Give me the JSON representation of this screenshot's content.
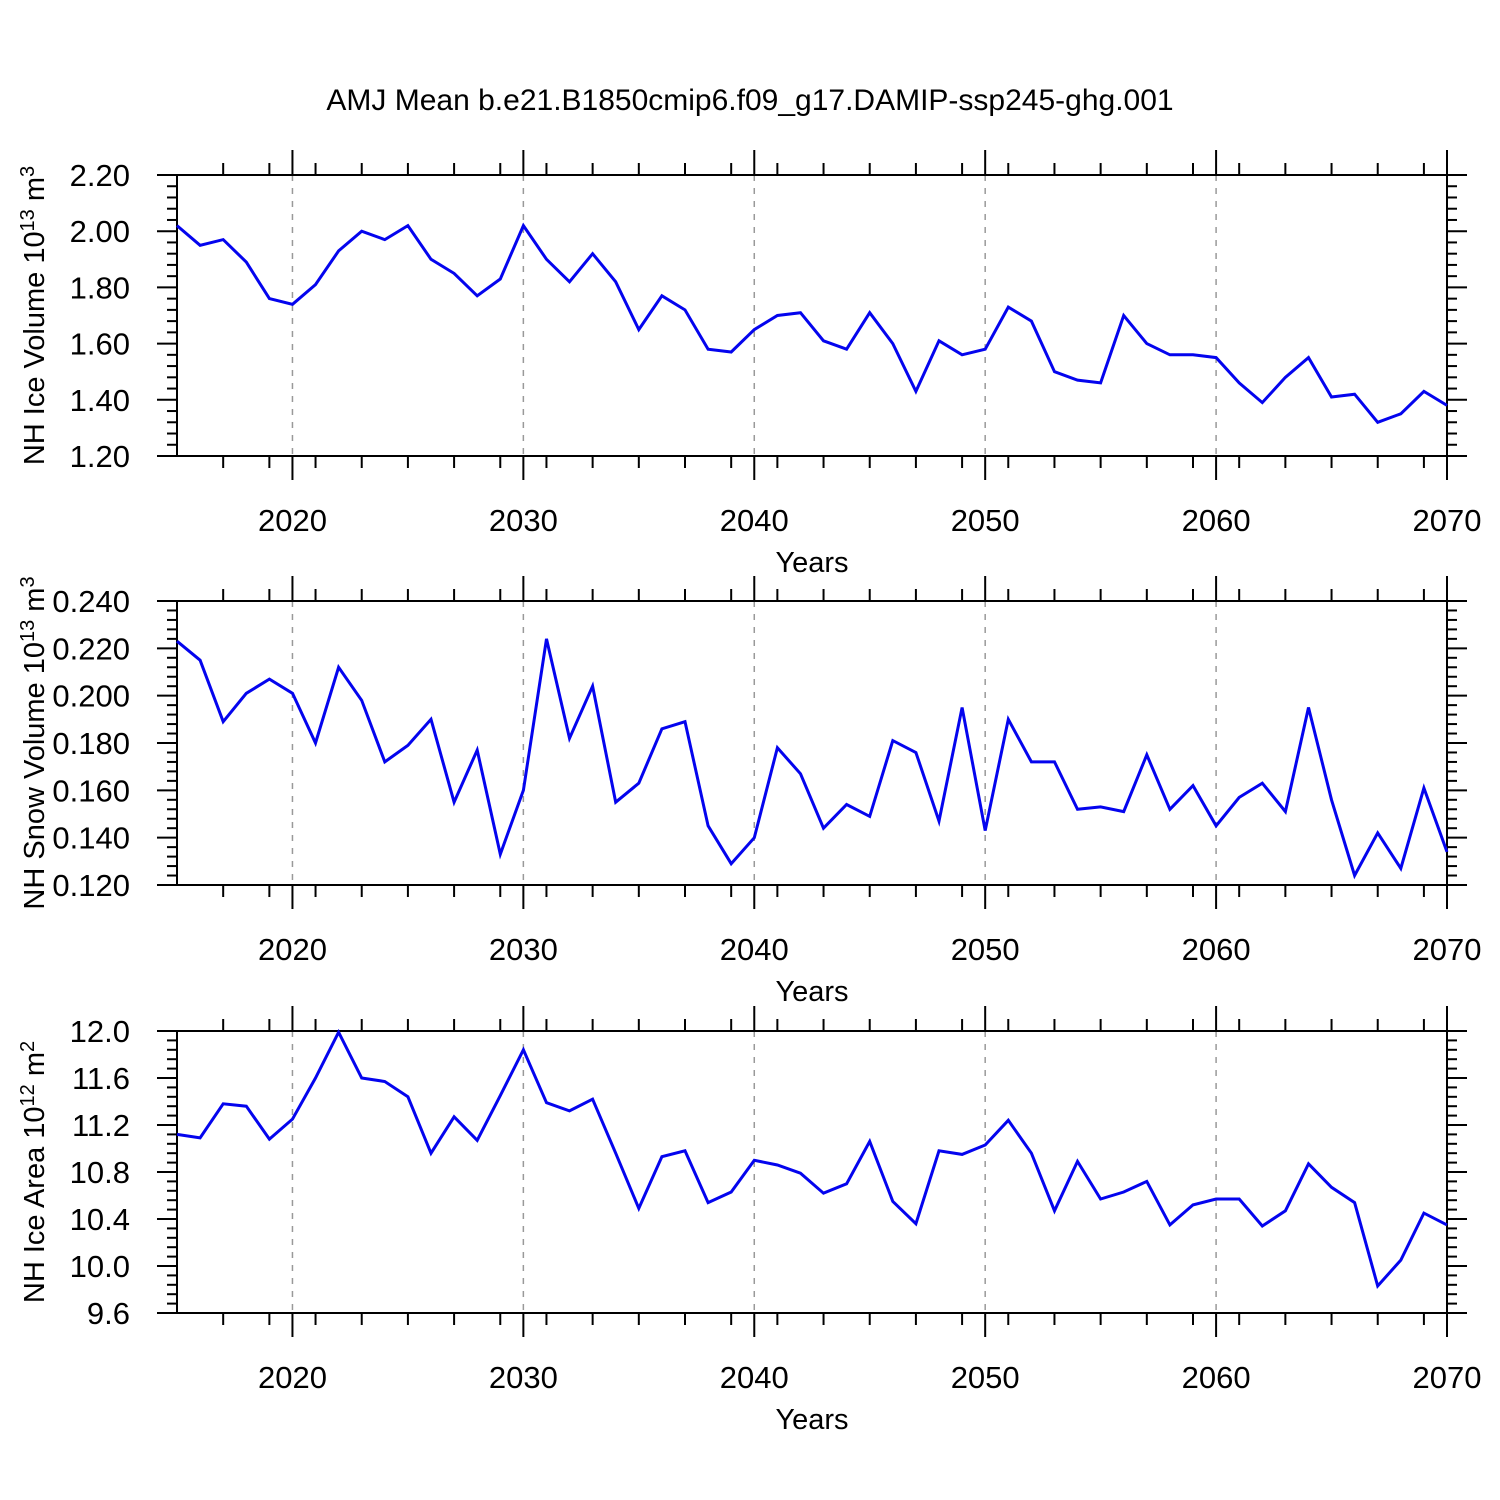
{
  "title": "AMJ Mean b.e21.B1850cmip6.f09_g17.DAMIP-ssp245-ghg.001",
  "colors": {
    "line": "#0404ee",
    "grid": "#999999",
    "axis": "#000000",
    "text": "#000000",
    "background": "#ffffff"
  },
  "x_axis": {
    "label": "Years",
    "min": 2015,
    "max": 2070,
    "major_ticks": [
      2020,
      2030,
      2040,
      2050,
      2060,
      2070
    ],
    "major_tick_labels": [
      "2020",
      "2030",
      "2040",
      "2050",
      "2060",
      "2070"
    ],
    "minor_tick_step": 2,
    "gridline_years": [
      2020,
      2030,
      2040,
      2050,
      2060
    ]
  },
  "years": [
    2015,
    2016,
    2017,
    2018,
    2019,
    2020,
    2021,
    2022,
    2023,
    2024,
    2025,
    2026,
    2027,
    2028,
    2029,
    2030,
    2031,
    2032,
    2033,
    2034,
    2035,
    2036,
    2037,
    2038,
    2039,
    2040,
    2041,
    2042,
    2043,
    2044,
    2045,
    2046,
    2047,
    2048,
    2049,
    2050,
    2051,
    2052,
    2053,
    2054,
    2055,
    2056,
    2057,
    2058,
    2059,
    2060,
    2061,
    2062,
    2063,
    2064,
    2065,
    2066,
    2067,
    2068,
    2069,
    2070
  ],
  "chart_data": [
    {
      "type": "line",
      "name": "nh-ice-volume",
      "ylabel_plain": "NH Ice Volume 10^13 m^3",
      "ylabel_segments": [
        {
          "t": "NH Ice Volume 10"
        },
        {
          "t": "13",
          "sup": true
        },
        {
          "t": " m"
        },
        {
          "t": "3",
          "sup": true
        }
      ],
      "ylim": [
        1.2,
        2.2
      ],
      "ytick_values": [
        2.2,
        2.0,
        1.8,
        1.6,
        1.4,
        1.2
      ],
      "ytick_labels": [
        "2.20",
        "2.00",
        "1.80",
        "1.60",
        "1.40",
        "1.20"
      ],
      "yminor_step": 0.04,
      "grid": true,
      "legend": "none",
      "values": [
        2.02,
        1.95,
        1.97,
        1.89,
        1.76,
        1.74,
        1.81,
        1.93,
        2.0,
        1.97,
        2.02,
        1.9,
        1.85,
        1.77,
        1.83,
        2.02,
        1.9,
        1.82,
        1.92,
        1.82,
        1.65,
        1.77,
        1.72,
        1.58,
        1.57,
        1.65,
        1.7,
        1.71,
        1.61,
        1.58,
        1.71,
        1.6,
        1.43,
        1.61,
        1.56,
        1.58,
        1.73,
        1.68,
        1.5,
        1.47,
        1.46,
        1.7,
        1.6,
        1.56,
        1.56,
        1.55,
        1.46,
        1.39,
        1.48,
        1.55,
        1.41,
        1.42,
        1.32,
        1.35,
        1.43,
        1.38
      ]
    },
    {
      "type": "line",
      "name": "nh-snow-volume",
      "ylabel_plain": "NH Snow Volume 10^13 m^3",
      "ylabel_segments": [
        {
          "t": "NH Snow Volume 10"
        },
        {
          "t": "13",
          "sup": true
        },
        {
          "t": " m"
        },
        {
          "t": "3",
          "sup": true
        }
      ],
      "ylim": [
        0.12,
        0.24
      ],
      "ytick_values": [
        0.24,
        0.22,
        0.2,
        0.18,
        0.16,
        0.14,
        0.12
      ],
      "ytick_labels": [
        "0.240",
        "0.220",
        "0.200",
        "0.180",
        "0.160",
        "0.140",
        "0.120"
      ],
      "yminor_step": 0.004,
      "grid": true,
      "legend": "none",
      "values": [
        0.223,
        0.215,
        0.189,
        0.201,
        0.207,
        0.201,
        0.18,
        0.212,
        0.198,
        0.172,
        0.179,
        0.19,
        0.155,
        0.177,
        0.133,
        0.16,
        0.224,
        0.182,
        0.204,
        0.155,
        0.163,
        0.186,
        0.189,
        0.145,
        0.129,
        0.14,
        0.178,
        0.167,
        0.144,
        0.154,
        0.149,
        0.181,
        0.176,
        0.147,
        0.195,
        0.143,
        0.19,
        0.172,
        0.172,
        0.152,
        0.153,
        0.151,
        0.175,
        0.152,
        0.162,
        0.145,
        0.157,
        0.163,
        0.151,
        0.195,
        0.156,
        0.124,
        0.142,
        0.127,
        0.161,
        0.134
      ]
    },
    {
      "type": "line",
      "name": "nh-ice-area",
      "ylabel_plain": "NH Ice Area 10^12 m^2",
      "ylabel_segments": [
        {
          "t": "NH Ice Area 10"
        },
        {
          "t": "12",
          "sup": true
        },
        {
          "t": " m"
        },
        {
          "t": "2",
          "sup": true
        }
      ],
      "ylim": [
        9.6,
        12.0
      ],
      "ytick_values": [
        12.0,
        11.6,
        11.2,
        10.8,
        10.4,
        10.0,
        9.6
      ],
      "ytick_labels": [
        "12.0",
        "11.6",
        "11.2",
        "10.8",
        "10.4",
        "10.0",
        "9.6"
      ],
      "yminor_step": 0.08,
      "grid": true,
      "legend": "none",
      "values": [
        11.12,
        11.09,
        11.38,
        11.36,
        11.08,
        11.25,
        11.6,
        11.99,
        11.6,
        11.57,
        11.44,
        10.96,
        11.27,
        11.07,
        11.45,
        11.84,
        11.39,
        11.32,
        11.42,
        10.96,
        10.49,
        10.93,
        10.98,
        10.54,
        10.63,
        10.9,
        10.86,
        10.79,
        10.62,
        10.7,
        11.06,
        10.55,
        10.36,
        10.98,
        10.95,
        11.03,
        11.24,
        10.96,
        10.47,
        10.89,
        10.57,
        10.63,
        10.72,
        10.35,
        10.52,
        10.57,
        10.57,
        10.34,
        10.47,
        10.87,
        10.67,
        10.54,
        9.83,
        10.05,
        10.45,
        10.35
      ]
    }
  ]
}
